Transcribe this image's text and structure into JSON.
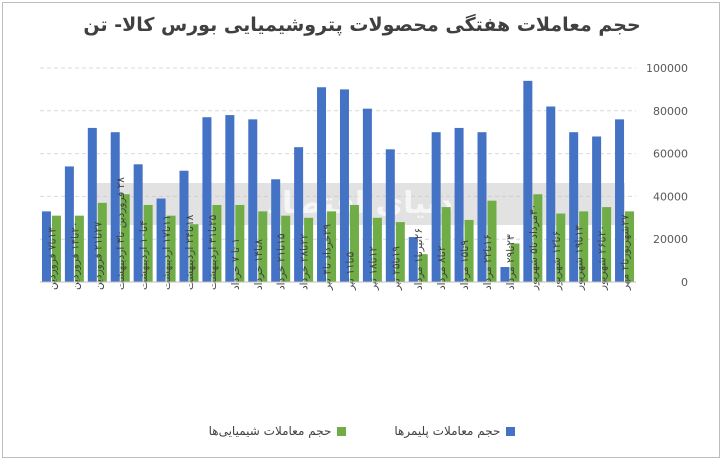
{
  "chart_data": {
    "type": "bar",
    "title": "حجم معاملات هفتگی محصولات پتروشیمیایی بورس کالا- تن",
    "xlabel": "",
    "ylabel": "",
    "ylim": [
      0,
      100000
    ],
    "yticks": [
      0,
      20000,
      40000,
      60000,
      80000,
      100000
    ],
    "ytick_labels": [
      "0",
      "20000",
      "40000",
      "60000",
      "80000",
      "100000"
    ],
    "grid": true,
    "legend_position": "bottom",
    "watermark": "دنیای اقتصاد",
    "categories": [
      "۱۳تا۷ فروردین",
      "۲۰تا۱۴ فروردین",
      "۲۷تا۲۱ فروردین",
      "۲۸ فروردین تا۳ اردیبهشت",
      "۴تا۱۰ اردیبهشت",
      "۱۱تا۱۷ اردیبهشت",
      "۱۸تا۲۴ اردیبهشت",
      "۲۵تا۳۱ اردیبهشت",
      "۱ تا ۷ خرداد",
      "۸تا۱۴ خرداد",
      "۱۵تا۲۱ خرداد",
      "۲۲تا۲۸ خرداد",
      "۲۹خرداد تا۴ تیر",
      "۵تا۱۱ تیر",
      "۱۲تا۱۸ تیر",
      "۱۹تا۲۵ تیر",
      "۲۶تیرتا۱ مرداد",
      "۲تا۸ مرداد",
      "۹تا۱۵ مرداد",
      "۱۶تا۲۲ مرداد",
      "۲۳تا۲۹ مرداد",
      "۳۰مرداد تا۵ شهریور",
      "۶تا۱۲ شهریور",
      "۱۳تا۱۹ شهریور",
      "۲۰تا۲۶ شهریور",
      "۲۷شهریورتا۲ مهر"
    ],
    "series": [
      {
        "name": "حجم معاملات پلیمرها",
        "color": "#4472C4",
        "values": [
          33000,
          54000,
          72000,
          70000,
          55000,
          39000,
          52000,
          77000,
          78000,
          76000,
          48000,
          63000,
          91000,
          90000,
          81000,
          62000,
          21000,
          70000,
          72000,
          70000,
          7000,
          94000,
          82000,
          70000,
          68000,
          76000
        ]
      },
      {
        "name": "حجم معاملات شیمیایی‌ها",
        "color": "#70AD47",
        "values": [
          31000,
          31000,
          37000,
          41000,
          36000,
          31000,
          27000,
          36000,
          36000,
          33000,
          31000,
          30000,
          33000,
          36000,
          30000,
          28000,
          13000,
          35000,
          29000,
          38000,
          18000,
          41000,
          32000,
          33000,
          35000,
          33000
        ]
      }
    ]
  }
}
